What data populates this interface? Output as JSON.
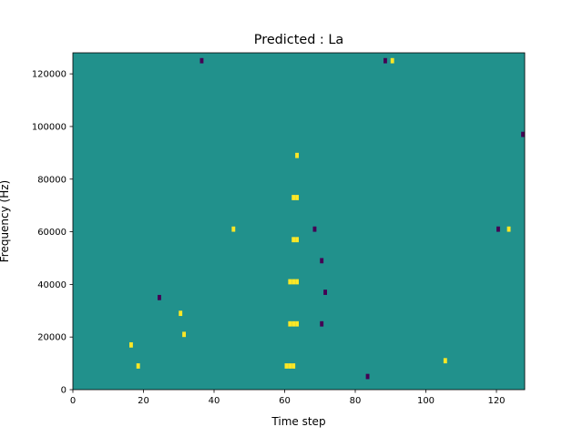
{
  "chart_data": {
    "type": "heatmap",
    "title": "Predicted : La",
    "xlabel": "Time step",
    "ylabel": "Frequency (Hz)",
    "xlim": [
      0,
      128
    ],
    "ylim": [
      0,
      128000
    ],
    "xticks": [
      0,
      20,
      40,
      60,
      80,
      100,
      120
    ],
    "yticks": [
      0,
      20000,
      40000,
      60000,
      80000,
      100000,
      120000
    ],
    "grid": false,
    "legend": "none",
    "value_levels": [
      -1,
      0,
      1
    ],
    "colors": {
      "-1": "#440154",
      "0": "#21918c",
      "1": "#fde725"
    },
    "background_value": 0,
    "cells": [
      {
        "t": 60,
        "f": 8000,
        "v": 1
      },
      {
        "t": 61,
        "f": 8000,
        "v": 1
      },
      {
        "t": 62,
        "f": 8000,
        "v": 1
      },
      {
        "t": 61,
        "f": 24000,
        "v": 1
      },
      {
        "t": 62,
        "f": 24000,
        "v": 1
      },
      {
        "t": 63,
        "f": 24000,
        "v": 1
      },
      {
        "t": 61,
        "f": 40000,
        "v": 1
      },
      {
        "t": 62,
        "f": 40000,
        "v": 1
      },
      {
        "t": 63,
        "f": 40000,
        "v": 1
      },
      {
        "t": 62,
        "f": 56000,
        "v": 1
      },
      {
        "t": 63,
        "f": 56000,
        "v": 1
      },
      {
        "t": 62,
        "f": 72000,
        "v": 1
      },
      {
        "t": 63,
        "f": 72000,
        "v": 1
      },
      {
        "t": 63,
        "f": 88000,
        "v": 1
      },
      {
        "t": 70,
        "f": 24000,
        "v": -1
      },
      {
        "t": 71,
        "f": 36000,
        "v": -1
      },
      {
        "t": 70,
        "f": 48000,
        "v": -1
      },
      {
        "t": 68,
        "f": 60000,
        "v": -1
      },
      {
        "t": 83,
        "f": 4000,
        "v": -1
      },
      {
        "t": 24,
        "f": 34000,
        "v": -1
      },
      {
        "t": 36,
        "f": 124000,
        "v": -1
      },
      {
        "t": 88,
        "f": 124000,
        "v": -1
      },
      {
        "t": 120,
        "f": 60000,
        "v": -1
      },
      {
        "t": 127,
        "f": 96000,
        "v": -1
      },
      {
        "t": 30,
        "f": 28000,
        "v": 1
      },
      {
        "t": 31,
        "f": 20000,
        "v": 1
      },
      {
        "t": 16,
        "f": 16000,
        "v": 1
      },
      {
        "t": 18,
        "f": 8000,
        "v": 1
      },
      {
        "t": 45,
        "f": 60000,
        "v": 1
      },
      {
        "t": 90,
        "f": 124000,
        "v": 1
      },
      {
        "t": 105,
        "f": 10000,
        "v": 1
      },
      {
        "t": 123,
        "f": 60000,
        "v": 1
      }
    ]
  }
}
